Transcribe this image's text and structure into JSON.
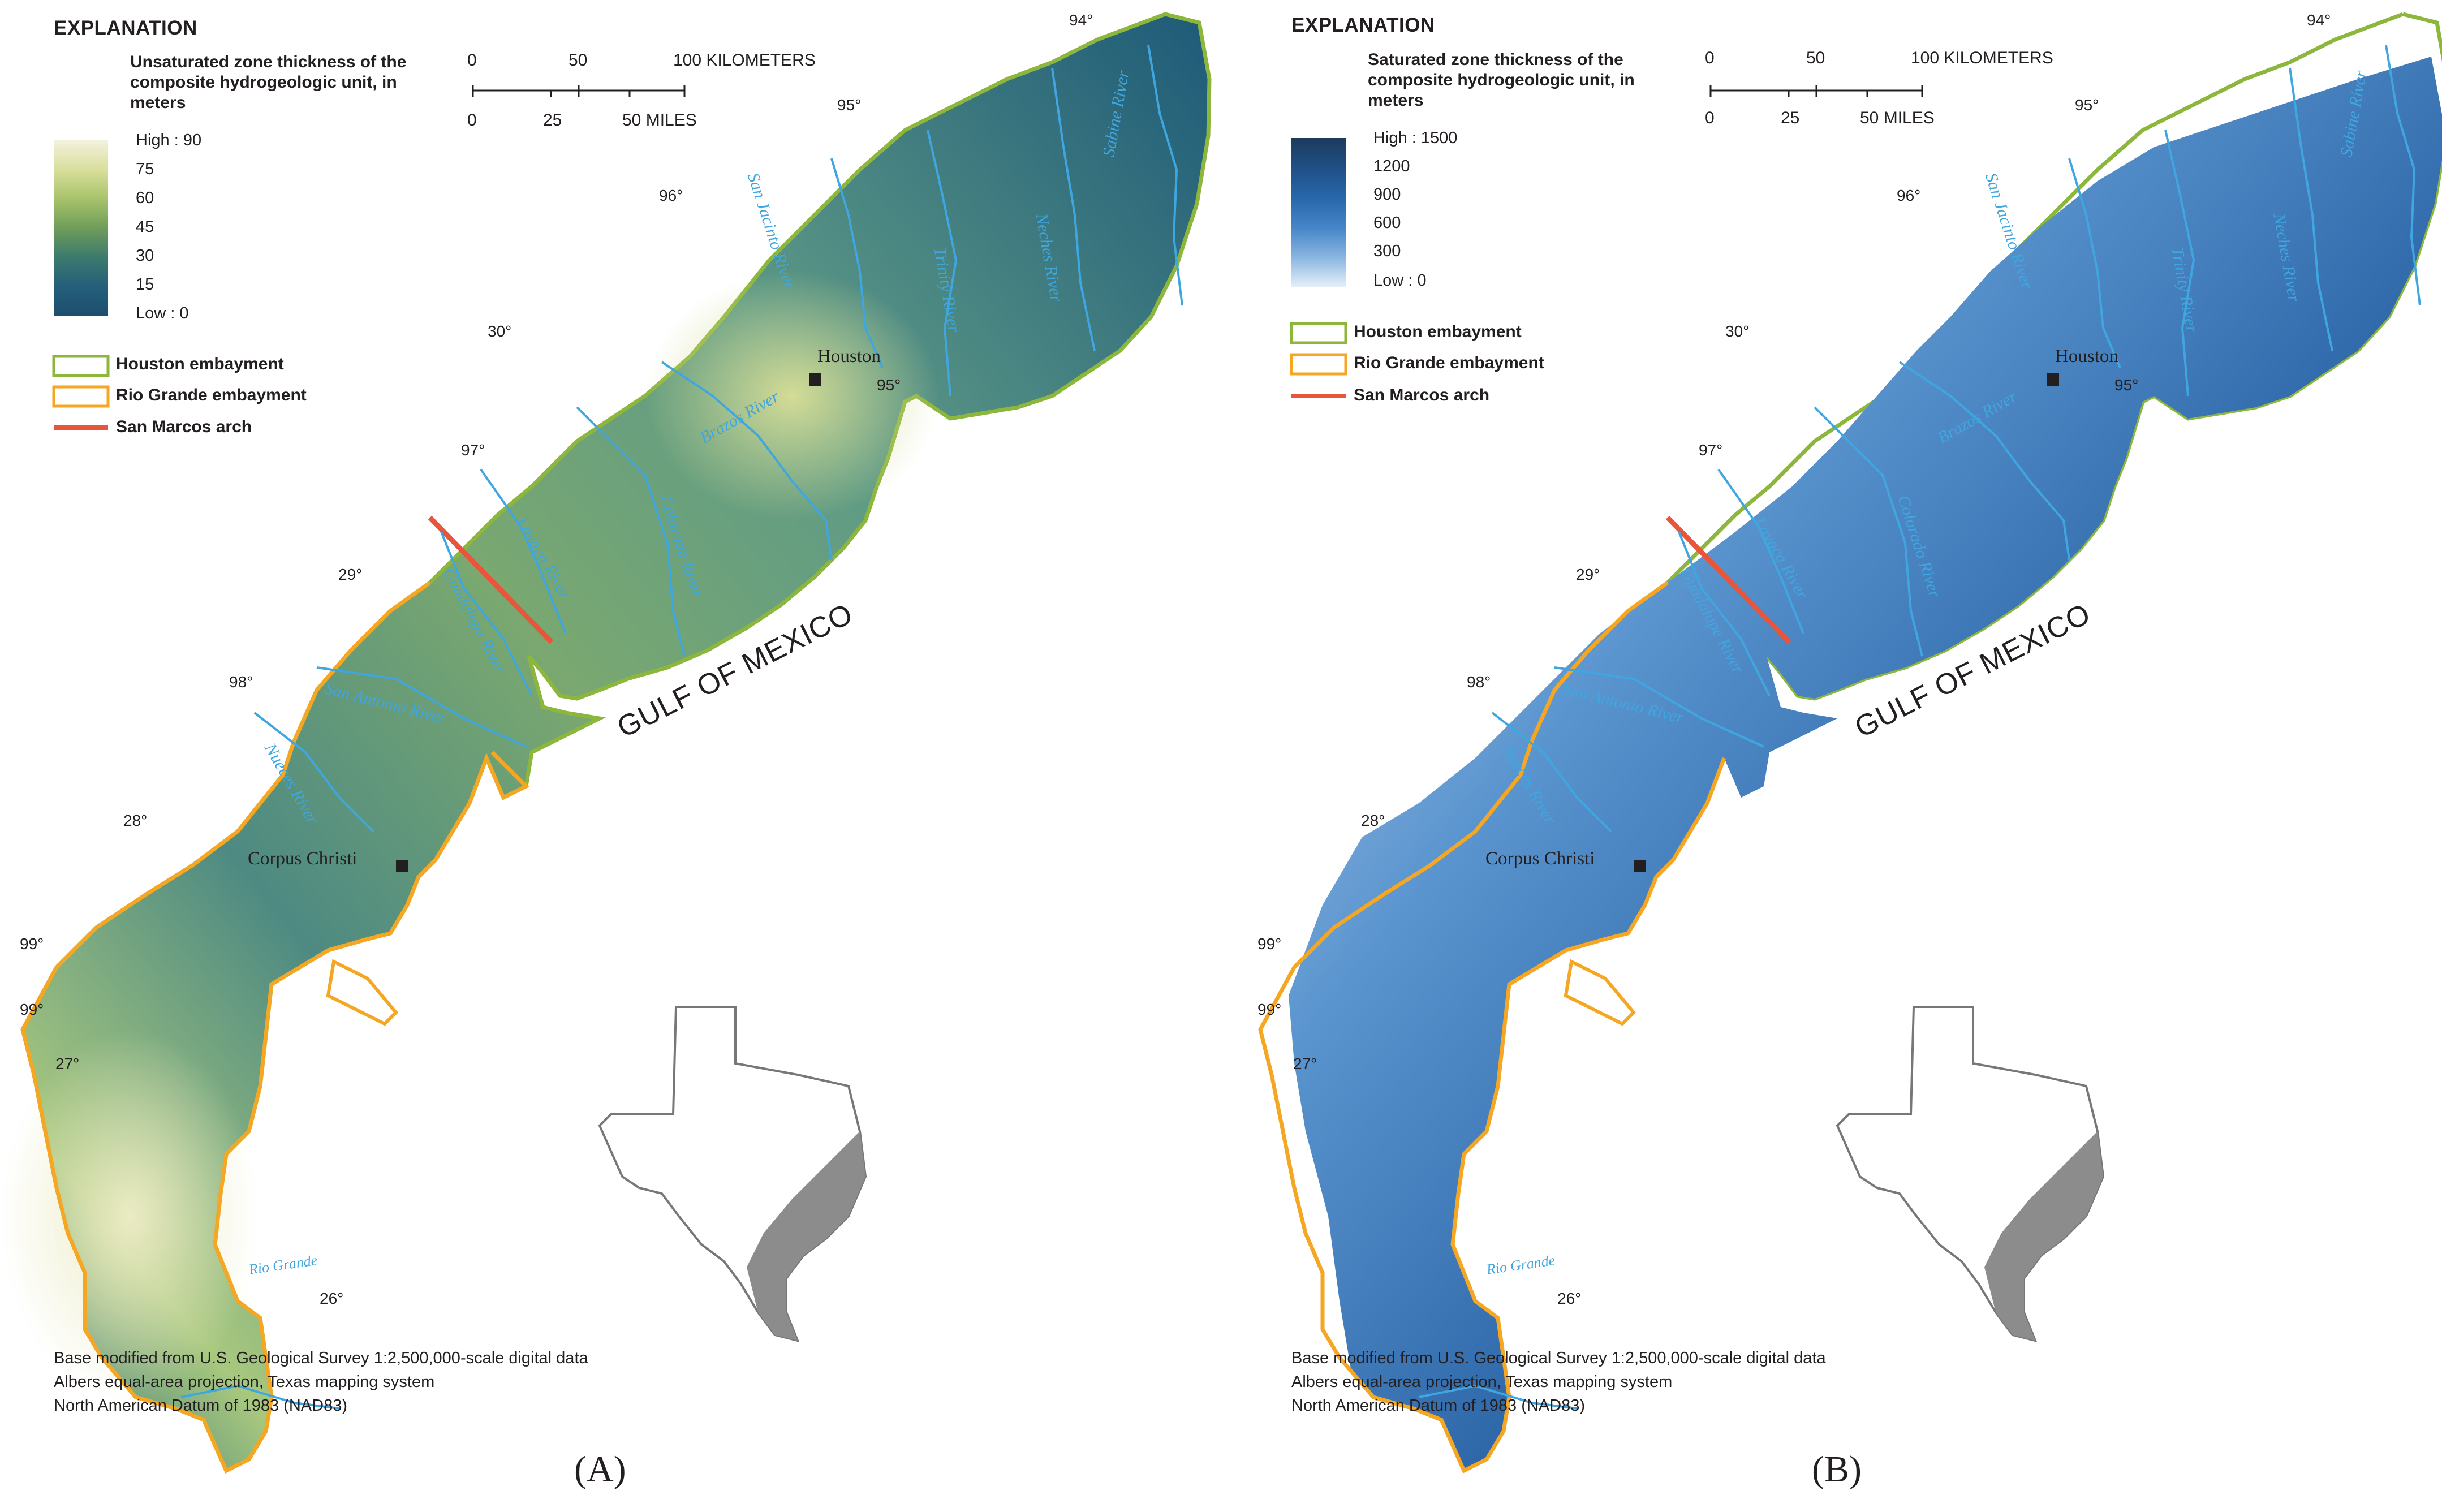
{
  "panels": [
    {
      "id": "A",
      "label": "(A)",
      "legend_title": "EXPLANATION",
      "legend_subtitle": [
        "Unsaturated zone thickness of the",
        "composite hydrogeologic unit, in",
        "meters"
      ],
      "ramp_labels": [
        "High : 90",
        "75",
        "60",
        "45",
        "30",
        "15",
        "Low : 0"
      ],
      "ramp_colors": [
        "#f3f1de",
        "#d9df9c",
        "#a8c36b",
        "#6f9d5a",
        "#3c7a6e",
        "#245f7a",
        "#1c4f6e"
      ],
      "embayments": [
        "Houston embayment",
        "Rio Grande embayment",
        "San Marcos arch"
      ],
      "scale_km": [
        "0",
        "50",
        "100 KILOMETERS"
      ],
      "scale_mi": [
        "0",
        "25",
        "50 MILES"
      ],
      "coords": [
        "94°",
        "95°",
        "96°",
        "30°",
        "95°",
        "97°",
        "29°",
        "98°",
        "28°",
        "99°",
        "99°",
        "27°",
        "26°"
      ],
      "cities": [
        "Houston",
        "Corpus Christi"
      ],
      "rivers": [
        "Sabine River",
        "Neches River",
        "Trinity River",
        "San Jacinto River",
        "Brazos River",
        "Colorado River",
        "Lavaca River",
        "Guadalupe River",
        "San Antonio River",
        "Nueces River",
        "Rio Grande"
      ],
      "gulf": "GULF OF MEXICO",
      "credits": [
        "Base modified from U.S. Geological Survey 1:2,500,000-scale digital data",
        "Albers equal-area projection, Texas mapping system",
        "North American Datum of 1983 (NAD83)"
      ]
    },
    {
      "id": "B",
      "label": "(B)",
      "legend_title": "EXPLANATION",
      "legend_subtitle": [
        "Saturated zone thickness of the",
        "composite hydrogeologic unit, in",
        "meters"
      ],
      "ramp_labels": [
        "High : 1500",
        "1200",
        "900",
        "600",
        "300",
        "Low : 0"
      ],
      "ramp_colors": [
        "#1d3b5c",
        "#1f4f86",
        "#2768aa",
        "#4585c8",
        "#8ab6e0",
        "#e6f0fa"
      ],
      "embayments": [
        "Houston embayment",
        "Rio Grande embayment",
        "San Marcos arch"
      ],
      "scale_km": [
        "0",
        "50",
        "100 KILOMETERS"
      ],
      "scale_mi": [
        "0",
        "25",
        "50 MILES"
      ],
      "coords": [
        "94°",
        "95°",
        "96°",
        "30°",
        "95°",
        "97°",
        "29°",
        "98°",
        "28°",
        "99°",
        "99°",
        "27°",
        "26°"
      ],
      "cities": [
        "Houston",
        "Corpus Christi"
      ],
      "rivers": [
        "Sabine River",
        "Neches River",
        "Trinity River",
        "San Jacinto River",
        "Brazos River",
        "Colorado River",
        "Lavaca River",
        "Guadalupe River",
        "San Antonio River",
        "Nueces River",
        "Rio Grande"
      ],
      "gulf": "GULF OF MEXICO",
      "credits": [
        "Base modified from U.S. Geological Survey 1:2,500,000-scale digital data",
        "Albers equal-area projection, Texas mapping system",
        "North American Datum of 1983 (NAD83)"
      ]
    }
  ],
  "colors": {
    "houston_embayment": "#8db63c",
    "rio_grande_embayment": "#f5a623",
    "san_marcos_arch": "#e8553a",
    "rivers": "#3fa6e0",
    "inset_state": "#ffffff",
    "inset_region": "#8c8c8c"
  }
}
